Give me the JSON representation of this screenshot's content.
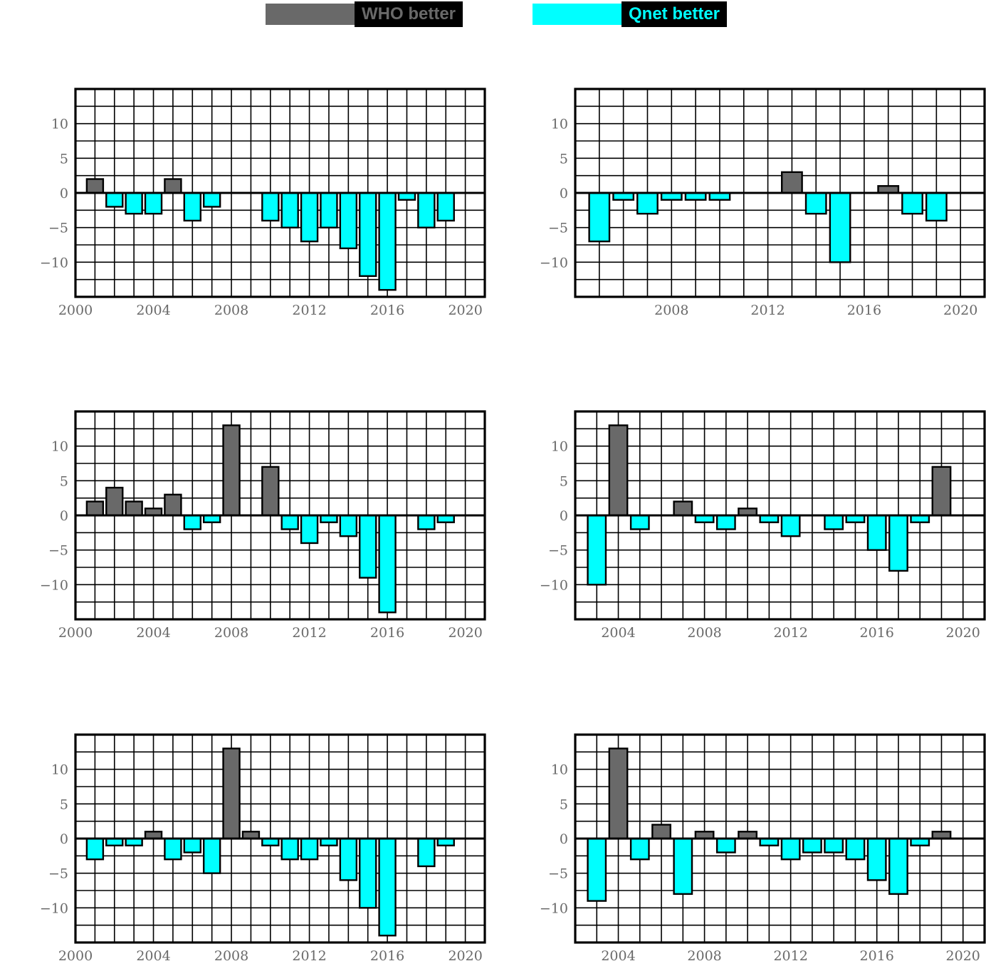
{
  "legend": {
    "items": [
      {
        "label": "WHO better",
        "color": "#696969"
      },
      {
        "label": "Qnet better",
        "color": "#00ffff"
      }
    ]
  },
  "colors": {
    "positive": "#696969",
    "negative": "#00ffff",
    "grid": "#000000",
    "tick_text": "#696969"
  },
  "chart_data": [
    {
      "type": "bar",
      "xlim": [
        2000,
        2021
      ],
      "ylim": [
        -15,
        15
      ],
      "xticks": [
        2000,
        2004,
        2008,
        2012,
        2016,
        2020
      ],
      "yticks": [
        10,
        5,
        0,
        -5,
        -10
      ],
      "grid": true,
      "x": [
        2001,
        2002,
        2003,
        2004,
        2005,
        2006,
        2007,
        2008,
        2009,
        2010,
        2011,
        2012,
        2013,
        2014,
        2015,
        2016,
        2017,
        2018,
        2019
      ],
      "values": [
        2,
        -2,
        -3,
        -3,
        2,
        -4,
        -2,
        0,
        0,
        -4,
        -5,
        -7,
        -5,
        -8,
        -12,
        -14,
        -1,
        -5,
        -4
      ]
    },
    {
      "type": "bar",
      "xlim": [
        2004,
        2021
      ],
      "ylim": [
        -15,
        15
      ],
      "xticks": [
        2008,
        2012,
        2016,
        2020
      ],
      "yticks": [
        10,
        5,
        0,
        -5,
        -10
      ],
      "grid": true,
      "x": [
        2005,
        2006,
        2007,
        2008,
        2009,
        2010,
        2011,
        2012,
        2013,
        2014,
        2015,
        2016,
        2017,
        2018,
        2019
      ],
      "values": [
        -7,
        -1,
        -3,
        -1,
        -1,
        -1,
        0,
        0,
        3,
        -3,
        -10,
        0,
        1,
        -3,
        -4
      ]
    },
    {
      "type": "bar",
      "xlim": [
        2000,
        2021
      ],
      "ylim": [
        -15,
        15
      ],
      "xticks": [
        2000,
        2004,
        2008,
        2012,
        2016,
        2020
      ],
      "yticks": [
        10,
        5,
        0,
        -5,
        -10
      ],
      "grid": true,
      "x": [
        2001,
        2002,
        2003,
        2004,
        2005,
        2006,
        2007,
        2008,
        2009,
        2010,
        2011,
        2012,
        2013,
        2014,
        2015,
        2016,
        2017,
        2018,
        2019
      ],
      "values": [
        2,
        4,
        2,
        1,
        3,
        -2,
        -1,
        13,
        0,
        7,
        -2,
        -4,
        -1,
        -3,
        -9,
        -14,
        0,
        -2,
        -1
      ]
    },
    {
      "type": "bar",
      "xlim": [
        2002,
        2021
      ],
      "ylim": [
        -15,
        15
      ],
      "xticks": [
        2004,
        2008,
        2012,
        2016,
        2020
      ],
      "yticks": [
        10,
        5,
        0,
        -5,
        -10
      ],
      "grid": true,
      "x": [
        2003,
        2004,
        2005,
        2006,
        2007,
        2008,
        2009,
        2010,
        2011,
        2012,
        2013,
        2014,
        2015,
        2016,
        2017,
        2018,
        2019,
        2020
      ],
      "values": [
        -10,
        13,
        -2,
        0,
        2,
        -1,
        -2,
        1,
        -1,
        -3,
        0,
        -2,
        -1,
        -5,
        -8,
        -1,
        7,
        0
      ]
    },
    {
      "type": "bar",
      "xlim": [
        2000,
        2021
      ],
      "ylim": [
        -15,
        15
      ],
      "xticks": [
        2000,
        2004,
        2008,
        2012,
        2016,
        2020
      ],
      "yticks": [
        10,
        5,
        0,
        -5,
        -10
      ],
      "grid": true,
      "x": [
        2001,
        2002,
        2003,
        2004,
        2005,
        2006,
        2007,
        2008,
        2009,
        2010,
        2011,
        2012,
        2013,
        2014,
        2015,
        2016,
        2017,
        2018,
        2019
      ],
      "values": [
        -3,
        -1,
        -1,
        1,
        -3,
        -2,
        -5,
        13,
        1,
        -1,
        -3,
        -3,
        -1,
        -6,
        -10,
        -14,
        0,
        -4,
        -1
      ]
    },
    {
      "type": "bar",
      "xlim": [
        2002,
        2021
      ],
      "ylim": [
        -15,
        15
      ],
      "xticks": [
        2004,
        2008,
        2012,
        2016,
        2020
      ],
      "yticks": [
        10,
        5,
        0,
        -5,
        -10
      ],
      "grid": true,
      "x": [
        2003,
        2004,
        2005,
        2006,
        2007,
        2008,
        2009,
        2010,
        2011,
        2012,
        2013,
        2014,
        2015,
        2016,
        2017,
        2018,
        2019,
        2020
      ],
      "values": [
        -9,
        13,
        -3,
        2,
        -8,
        1,
        -2,
        1,
        -1,
        -3,
        -2,
        -2,
        -3,
        -6,
        -8,
        -1,
        1,
        0
      ]
    }
  ]
}
